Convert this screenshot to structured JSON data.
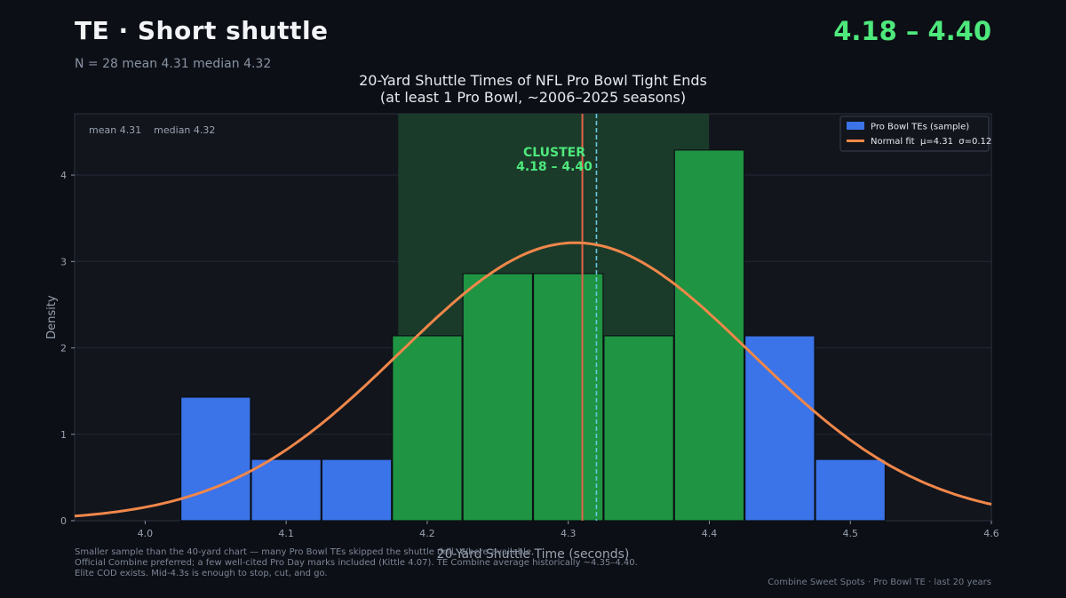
{
  "header": {
    "title": "TE  ·  Short shuttle",
    "range": "4.18 – 4.40",
    "stats": "N = 28   mean 4.31   median 4.32"
  },
  "chart_data": {
    "type": "bar",
    "title": "20-Yard Shuttle Times of NFL Pro Bowl Tight Ends",
    "subtitle": "(at least 1 Pro Bowl, ~2006–2025 seasons)",
    "xlabel": "20-Yard Shuttle Time (seconds)",
    "ylabel": "Density",
    "xlim": [
      3.95,
      4.6
    ],
    "ylim": [
      0,
      4.71
    ],
    "xticks": [
      4.0,
      4.1,
      4.2,
      4.3,
      4.4,
      4.5,
      4.6
    ],
    "xtick_labels": [
      "4.0",
      "4.1",
      "4.2",
      "4.3",
      "4.4",
      "4.5",
      "4.6"
    ],
    "yticks": [
      0,
      1,
      2,
      3,
      4
    ],
    "ytick_labels": [
      "0",
      "1",
      "2",
      "3",
      "4"
    ],
    "grid": true,
    "legend_position": "top-right",
    "mean": 4.31,
    "median": 4.32,
    "stats_annotation": "mean 4.31    median 4.32",
    "cluster": {
      "range": [
        4.18,
        4.4
      ],
      "label_line1": "CLUSTER",
      "label_line2": "4.18 – 4.40",
      "color": "#4ee87c"
    },
    "bins": [
      {
        "x0": 4.025,
        "x1": 4.075,
        "density": 1.43,
        "in_cluster": false
      },
      {
        "x0": 4.075,
        "x1": 4.125,
        "density": 0.71,
        "in_cluster": false
      },
      {
        "x0": 4.125,
        "x1": 4.175,
        "density": 0.71,
        "in_cluster": false
      },
      {
        "x0": 4.175,
        "x1": 4.225,
        "density": 2.14,
        "in_cluster": true
      },
      {
        "x0": 4.225,
        "x1": 4.275,
        "density": 2.86,
        "in_cluster": true
      },
      {
        "x0": 4.275,
        "x1": 4.325,
        "density": 2.86,
        "in_cluster": true
      },
      {
        "x0": 4.325,
        "x1": 4.375,
        "density": 2.14,
        "in_cluster": true
      },
      {
        "x0": 4.375,
        "x1": 4.425,
        "density": 4.29,
        "in_cluster": true
      },
      {
        "x0": 4.425,
        "x1": 4.475,
        "density": 2.14,
        "in_cluster": false
      },
      {
        "x0": 4.475,
        "x1": 4.525,
        "density": 0.71,
        "in_cluster": false
      }
    ],
    "normal_fit": {
      "mu": 4.305,
      "sigma": 0.124
    },
    "series": [
      {
        "name": "Pro Bowl TEs (sample)",
        "color": "#3b73e8"
      },
      {
        "name": "Normal fit  μ=4.31  σ=0.12",
        "color": "#f0874a"
      }
    ],
    "colors": {
      "bar_out": "#3b73e8",
      "bar_in": "#1f9442",
      "cluster_band": "#1c3d2b",
      "mean_line": "#e0624a",
      "median_line": "#69c8e0",
      "plot_bg": "#12151c"
    }
  },
  "footnote": {
    "lines": [
      "Smaller sample than the 40-yard chart — many Pro Bowl TEs skipped the shuttle drill. Where available,",
      "Official Combine preferred; a few well-cited Pro Day marks included (Kittle 4.07). TE Combine average historically ~4.35–4.40.",
      "Elite COD exists. Mid-4.3s is enough to stop, cut, and go."
    ]
  },
  "credits": "Combine Sweet Spots  ·  Pro Bowl TE  ·  last 20 years"
}
